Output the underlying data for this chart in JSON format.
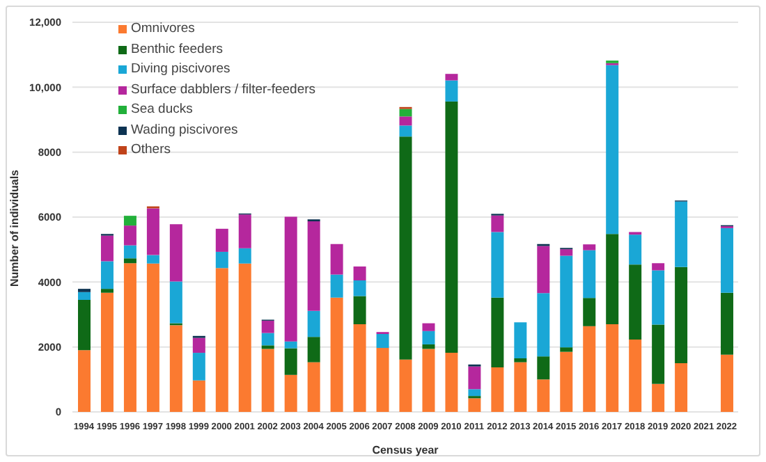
{
  "chart_data": {
    "type": "bar",
    "stacked": true,
    "xlabel": "Census year",
    "ylabel": "Number of individuals",
    "categories": [
      "1994",
      "1995",
      "1996",
      "1997",
      "1998",
      "1999",
      "2000",
      "2001",
      "2002",
      "2003",
      "2004",
      "2005",
      "2006",
      "2007",
      "2008",
      "2009",
      "2010",
      "2011",
      "2012",
      "2013",
      "2014",
      "2015",
      "2016",
      "2017",
      "2018",
      "2019",
      "2020",
      "2021",
      "2022"
    ],
    "series": [
      {
        "name": "Omnivores",
        "color": "#fb7a30",
        "values": [
          1900,
          3670,
          4580,
          4570,
          2670,
          970,
          4430,
          4570,
          1940,
          1140,
          1530,
          3520,
          2700,
          1970,
          1610,
          1940,
          1820,
          420,
          1370,
          1530,
          1000,
          1850,
          2640,
          2700,
          2230,
          860,
          1500,
          null,
          1760
        ]
      },
      {
        "name": "Benthic feeders",
        "color": "#0f6a17",
        "values": [
          1550,
          120,
          150,
          null,
          60,
          null,
          null,
          null,
          110,
          820,
          780,
          null,
          870,
          null,
          6870,
          140,
          7740,
          70,
          2150,
          120,
          710,
          140,
          870,
          2780,
          2310,
          1830,
          2960,
          null,
          1910
        ]
      },
      {
        "name": "Diving piscivores",
        "color": "#1aa7d6",
        "values": [
          240,
          850,
          400,
          260,
          1290,
          850,
          500,
          470,
          380,
          210,
          800,
          710,
          480,
          430,
          340,
          410,
          650,
          210,
          2020,
          1110,
          1950,
          2820,
          1470,
          5200,
          920,
          1670,
          2020,
          null,
          1990
        ]
      },
      {
        "name": "Surface dabblers / filter-feeders",
        "color": "#b5279d",
        "values": [
          null,
          790,
          610,
          1440,
          1760,
          460,
          710,
          1040,
          380,
          3840,
          2760,
          940,
          430,
          60,
          280,
          240,
          200,
          700,
          510,
          null,
          1450,
          200,
          180,
          60,
          80,
          220,
          null,
          null,
          60
        ]
      },
      {
        "name": "Sea ducks",
        "color": "#22b03a",
        "values": [
          null,
          null,
          300,
          null,
          null,
          null,
          null,
          null,
          null,
          null,
          null,
          null,
          null,
          null,
          230,
          null,
          null,
          null,
          null,
          null,
          null,
          null,
          null,
          80,
          null,
          null,
          null,
          null,
          null
        ]
      },
      {
        "name": "Wading piscivores",
        "color": "#0d3352",
        "values": [
          100,
          50,
          null,
          null,
          null,
          60,
          null,
          30,
          30,
          null,
          60,
          null,
          null,
          null,
          null,
          null,
          null,
          60,
          50,
          null,
          60,
          40,
          null,
          null,
          null,
          null,
          30,
          null,
          30
        ]
      },
      {
        "name": "Others",
        "color": "#c0431a",
        "values": [
          null,
          null,
          null,
          60,
          null,
          null,
          null,
          null,
          null,
          null,
          null,
          null,
          null,
          null,
          60,
          null,
          null,
          null,
          null,
          null,
          null,
          null,
          null,
          null,
          null,
          null,
          null,
          null,
          null
        ]
      }
    ],
    "ylim": [
      0,
      12000
    ],
    "yticks": [
      0,
      2000,
      4000,
      6000,
      8000,
      {
        "value": 10000,
        "label": "10,000"
      },
      {
        "value": 12000,
        "label": "12,000"
      }
    ],
    "grid": "y",
    "legend": "top left"
  }
}
